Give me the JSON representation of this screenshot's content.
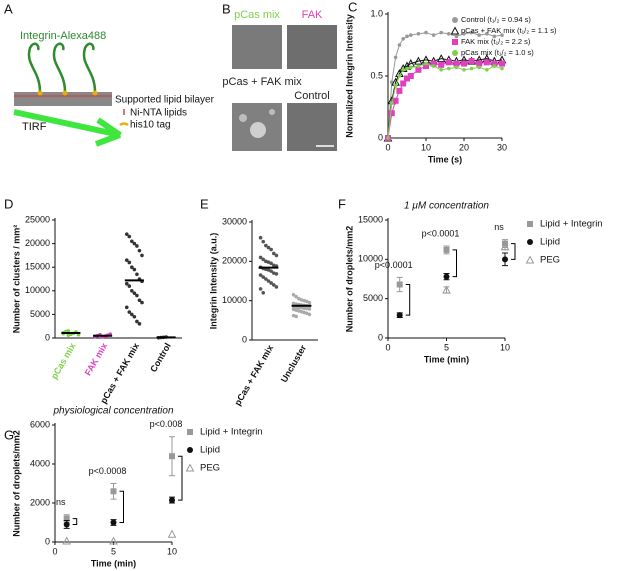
{
  "panel_a": {
    "letter": "A",
    "label": "Integrin-Alexa488",
    "bilayer": "Supported lipid bilayer",
    "lipids": "Ni-NTA lipids",
    "tag": "his10 tag",
    "tirf": "TIRF"
  },
  "panel_b": {
    "letter": "B",
    "labels": [
      "pCas mix",
      "FAK",
      "pCas + FAK mix",
      "Control"
    ],
    "label_colors": [
      "#7fd04a",
      "#e040c0",
      "#222",
      "#222"
    ]
  },
  "chart_data": [
    {
      "type": "line",
      "panel": "C",
      "xlabel": "Time (s)",
      "ylabel": "Normalized Integrin Intensity",
      "x": [
        0,
        1,
        2,
        3,
        4,
        5,
        6,
        8,
        10,
        12,
        14,
        16,
        18,
        20,
        22,
        24,
        26,
        28,
        30
      ],
      "xlim": [
        0,
        30
      ],
      "xticks": [
        0,
        10,
        20,
        30
      ],
      "ylim": [
        0,
        1
      ],
      "yticks": [
        0,
        0.5,
        {
          "value": 1,
          "label": "1.0"
        }
      ],
      "series": [
        {
          "name": "Control (t₁/₂ = 0.94 s)",
          "color": "#999999",
          "values": [
            0,
            0.45,
            0.65,
            0.75,
            0.8,
            0.82,
            0.83,
            0.84,
            0.85,
            0.83,
            0.85,
            0.84,
            0.82,
            0.84,
            0.85,
            0.83,
            0.84,
            0.82,
            0.83
          ]
        },
        {
          "name": "pCas + FAK mix (t₁/₂ = 1.1 s)",
          "color": "#111111",
          "values": [
            0,
            0.3,
            0.45,
            0.52,
            0.56,
            0.58,
            0.6,
            0.62,
            0.63,
            0.62,
            0.64,
            0.63,
            0.62,
            0.63,
            0.62,
            0.63,
            0.64,
            0.62,
            0.63
          ]
        },
        {
          "name": "FAK mix (t₁/₂ = 2.2 s)",
          "color": "#e040c0",
          "values": [
            0,
            0.2,
            0.3,
            0.38,
            0.44,
            0.48,
            0.5,
            0.55,
            0.58,
            0.6,
            0.59,
            0.61,
            0.6,
            0.6,
            0.62,
            0.6,
            0.61,
            0.6,
            0.6
          ]
        },
        {
          "name": "pCas mix (t₁/₂ = 1.0 s)",
          "color": "#7fd04a",
          "values": [
            0,
            0.28,
            0.42,
            0.5,
            0.55,
            0.56,
            0.57,
            0.58,
            0.6,
            0.58,
            0.55,
            0.56,
            0.57,
            0.55,
            0.56,
            0.57,
            0.55,
            0.58,
            0.56
          ]
        }
      ]
    },
    {
      "type": "strip",
      "panel": "D",
      "ylabel": "Number of clusters / mm²",
      "categories": [
        "pCas mix",
        "FAK mix",
        "pCas + FAK mix",
        "Control"
      ],
      "colors": [
        "#7fd04a",
        "#e040c0",
        "#333333",
        "#333333"
      ],
      "label_colors": [
        "#7fd04a",
        "#e040c0",
        "#111111",
        "#111111"
      ],
      "ylim": [
        0,
        25000
      ],
      "yticks": [
        0,
        5000,
        10000,
        15000,
        20000,
        25000
      ],
      "values": [
        [
          900,
          1200,
          1500,
          800,
          1000,
          1300,
          700,
          1100,
          1400,
          600
        ],
        [
          300,
          500,
          700,
          200,
          400,
          600,
          800,
          350
        ],
        [
          22000,
          21500,
          20500,
          20000,
          19500,
          18500,
          17500,
          16500,
          16000,
          15000,
          14500,
          13500,
          12500,
          12000,
          11500,
          11000,
          10000,
          9500,
          9000,
          8000,
          7500,
          6500,
          5500,
          5000,
          4500,
          3500,
          3000
        ],
        [
          50,
          100,
          150,
          200
        ]
      ],
      "means": [
        1050,
        480,
        12200,
        120
      ]
    },
    {
      "type": "strip",
      "panel": "E",
      "ylabel": "Integrin Intensity (a.u.)",
      "categories": [
        "pCas + FAK mix",
        "Uncluster"
      ],
      "colors": [
        "#555555",
        "#aaaaaa"
      ],
      "label_colors": [
        "#111111",
        "#111111"
      ],
      "ylim": [
        0,
        30000
      ],
      "yticks": [
        0,
        10000,
        20000,
        30000
      ],
      "values": [
        [
          26000,
          25000,
          24000,
          23500,
          23000,
          22000,
          21500,
          21000,
          20500,
          20000,
          19800,
          19500,
          19000,
          18800,
          18500,
          18200,
          18000,
          17800,
          17500,
          17000,
          16800,
          16500,
          16000,
          15500,
          15000,
          14500,
          14000,
          13500,
          13000,
          12000
        ],
        [
          11500,
          11000,
          10500,
          10200,
          10000,
          9800,
          9500,
          9300,
          9100,
          9000,
          8900,
          8800,
          8700,
          8600,
          8500,
          8400,
          8300,
          8200,
          8100,
          8000,
          7900,
          7800,
          7600,
          7400,
          7200,
          7000,
          6800,
          6500,
          6200,
          6000
        ]
      ],
      "means": [
        18400,
        8700
      ]
    },
    {
      "type": "errscatter",
      "panel": "F",
      "title": "1 μM concentration",
      "xlabel": "Time (min)",
      "ylabel": "Number of droplets/mm2",
      "x": [
        1,
        5,
        10
      ],
      "xlim": [
        0,
        10
      ],
      "xticks": [
        0,
        5,
        10
      ],
      "ylim": [
        0,
        15000
      ],
      "yticks": [
        0,
        5000,
        10000,
        15000
      ],
      "series": [
        {
          "name": "Lipid + Integrin",
          "color": "#999999",
          "marker": "square",
          "values": [
            6800,
            11200,
            12000
          ],
          "errors": [
            900,
            500,
            500
          ]
        },
        {
          "name": "Lipid",
          "color": "#111111",
          "marker": "circle",
          "values": [
            2900,
            7800,
            10000
          ],
          "errors": [
            300,
            400,
            800
          ]
        },
        {
          "name": "PEG",
          "color": "#999999",
          "marker": "triangle",
          "values": [
            null,
            6100,
            11600
          ],
          "errors": [
            null,
            400,
            400
          ]
        }
      ],
      "annotations": [
        "p<0.0001",
        "p<0.0001",
        "ns"
      ]
    },
    {
      "type": "errscatter",
      "panel": "G",
      "title": "physiological concentration",
      "xlabel": "Time (min)",
      "ylabel": "Number of droplets/mm2",
      "x": [
        1,
        5,
        10
      ],
      "xlim": [
        0,
        10
      ],
      "xticks": [
        0,
        5,
        10
      ],
      "ylim": [
        0,
        6000
      ],
      "yticks": [
        0,
        2000,
        4000,
        6000
      ],
      "series": [
        {
          "name": "Lipid + Integrin",
          "color": "#999999",
          "marker": "square",
          "values": [
            1200,
            2600,
            4400
          ],
          "errors": [
            200,
            400,
            1000
          ]
        },
        {
          "name": "Lipid",
          "color": "#111111",
          "marker": "circle",
          "values": [
            900,
            1000,
            2150
          ],
          "errors": [
            200,
            150,
            150
          ]
        },
        {
          "name": "PEG",
          "color": "#999999",
          "marker": "triangle",
          "values": [
            50,
            50,
            400
          ],
          "errors": [
            0,
            0,
            0
          ]
        }
      ],
      "annotations": [
        "ns",
        "p<0.0008",
        "p<0.008"
      ]
    }
  ]
}
